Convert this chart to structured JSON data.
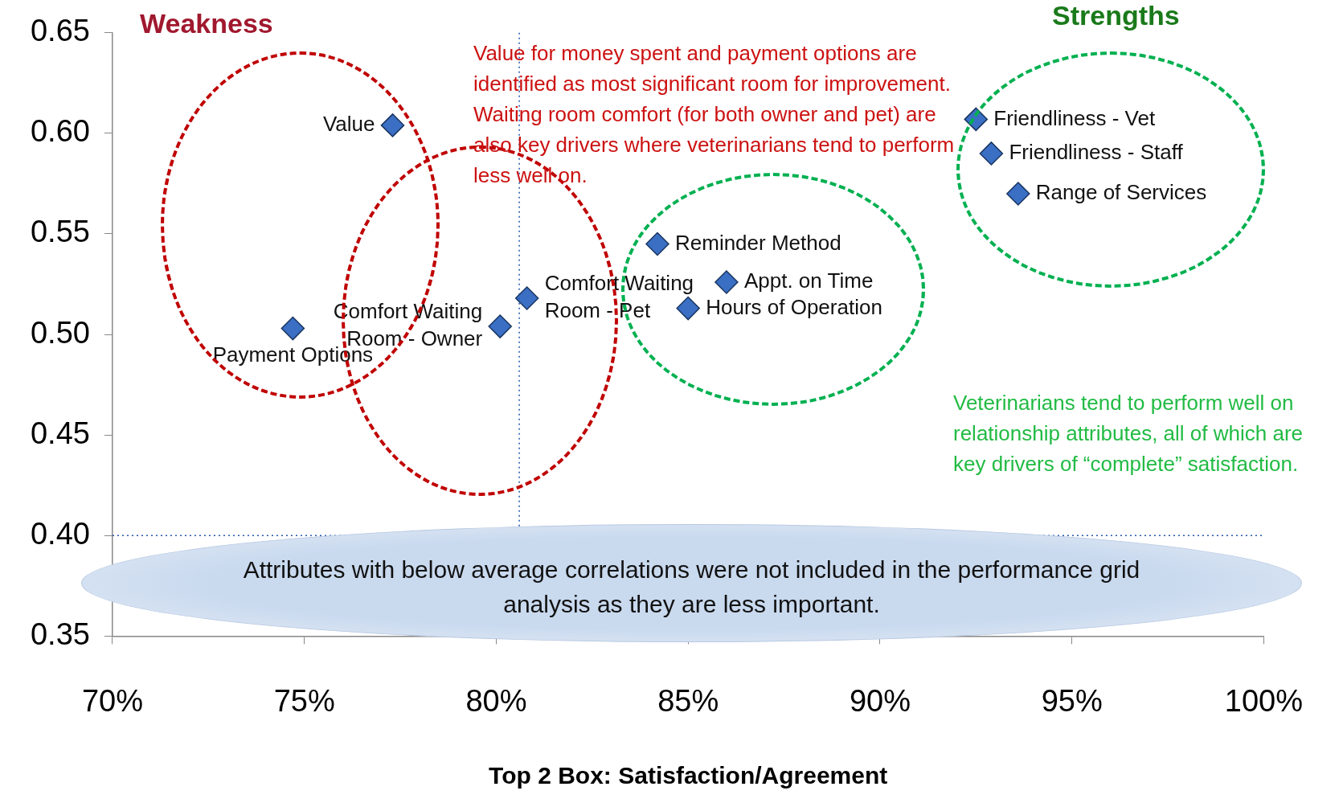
{
  "chart_data": {
    "type": "scatter",
    "xlabel": "Top 2 Box: Satisfaction/Agreement",
    "xlim": [
      70,
      100
    ],
    "xticks": [
      {
        "value": 70,
        "label": "70%"
      },
      {
        "value": 75,
        "label": "75%"
      },
      {
        "value": 80,
        "label": "80%"
      },
      {
        "value": 85,
        "label": "85%"
      },
      {
        "value": 90,
        "label": "90%"
      },
      {
        "value": 95,
        "label": "95%"
      },
      {
        "value": 100,
        "label": "100%"
      }
    ],
    "ylim": [
      0.35,
      0.65
    ],
    "yticks": [
      0.35,
      {
        "value": 0.4,
        "label": "0.40"
      },
      0.45,
      {
        "value": 0.5,
        "label": "0.50"
      },
      0.55,
      {
        "value": 0.6,
        "label": "0.60"
      },
      0.65
    ],
    "grid": false,
    "legend": false,
    "marker": "diamond",
    "series": [
      {
        "name": "Value",
        "color": "#3a6fc4",
        "x": [
          77.3
        ],
        "values": [
          0.604
        ]
      },
      {
        "name": "Payment Options",
        "color": "#3a6fc4",
        "x": [
          74.7
        ],
        "values": [
          0.503
        ]
      },
      {
        "name": "Comfort Waiting Room - Pet",
        "color": "#3a6fc4",
        "x": [
          80.8
        ],
        "values": [
          0.518
        ]
      },
      {
        "name": "Comfort Waiting Room - Owner",
        "color": "#3a6fc4",
        "x": [
          80.1
        ],
        "values": [
          0.504
        ]
      },
      {
        "name": "Reminder Method",
        "color": "#3a6fc4",
        "x": [
          84.2
        ],
        "values": [
          0.545
        ]
      },
      {
        "name": "Appt. on Time",
        "color": "#3a6fc4",
        "x": [
          86.0
        ],
        "values": [
          0.526
        ]
      },
      {
        "name": "Hours of Operation",
        "color": "#3a6fc4",
        "x": [
          85.0
        ],
        "values": [
          0.513
        ]
      },
      {
        "name": "Friendliness - Vet",
        "color": "#3a6fc4",
        "x": [
          92.5
        ],
        "values": [
          0.607
        ]
      },
      {
        "name": "Friendliness - Staff",
        "color": "#3a6fc4",
        "x": [
          92.9
        ],
        "values": [
          0.59
        ]
      },
      {
        "name": "Range of Services",
        "color": "#3a6fc4",
        "x": [
          93.6
        ],
        "values": [
          0.57
        ]
      }
    ],
    "ref_lines": [
      {
        "axis": "x",
        "value": 80.6,
        "color": "#2255aa",
        "line_style": "dotted"
      },
      {
        "axis": "y",
        "value": 0.4,
        "color": "#2255aa",
        "line_style": "dotted"
      }
    ],
    "annotations": [
      "Weakness",
      "Strengths",
      "Value for money spent and payment options are identified as most significant room for improvement.  Waiting room comfort (for both owner and pet) are also  key drivers where veterinarians tend to perform less well on.",
      "Veterinarians tend to perform well on relationship attributes, all of which are key drivers of “complete” satisfaction.",
      "Attributes with below average correlations were not included in the performance grid analysis as they are less important."
    ]
  }
}
